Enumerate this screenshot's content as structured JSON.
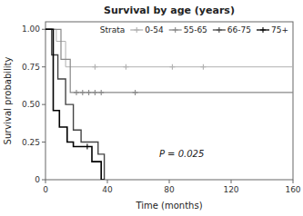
{
  "chart_data": {
    "type": "step",
    "title": "Survival by age (years)",
    "x_label": "Time (months)",
    "y_label": "Survival probability",
    "xlim": [
      0,
      160
    ],
    "ylim": [
      0,
      1.05
    ],
    "xticks": [
      0,
      40,
      80,
      120,
      160
    ],
    "yticks": [
      0,
      0.25,
      {
        "value": 0.5,
        "label": "0.50"
      },
      0.75,
      {
        "value": 1.0,
        "label": "1.00"
      }
    ],
    "grid": false,
    "legend": "upper right",
    "legend_title": "Strata",
    "annotations": [
      {
        "text": "P = 0.025",
        "x": 88,
        "y": 0.17
      }
    ],
    "series": [
      {
        "name": "0-54",
        "color": "#b0b0b0",
        "marker": "plus",
        "x": [
          0,
          7,
          7,
          13,
          13,
          160
        ],
        "values": [
          1.0,
          1.0,
          0.92,
          0.92,
          0.75,
          0.75
        ],
        "censors_x": [
          32,
          52,
          82,
          102
        ],
        "censors_y": [
          0.75,
          0.75,
          0.75,
          0.75
        ]
      },
      {
        "name": "55-65",
        "color": "#888888",
        "marker": "plus",
        "x": [
          0,
          10,
          10,
          16,
          16,
          160
        ],
        "values": [
          1.0,
          1.0,
          0.8,
          0.8,
          0.58,
          0.58
        ],
        "censors_x": [
          20,
          24,
          28,
          32,
          36,
          58
        ],
        "censors_y": [
          0.58,
          0.58,
          0.58,
          0.58,
          0.58,
          0.58
        ]
      },
      {
        "name": "66-75",
        "color": "#444444",
        "marker": "plus",
        "x": [
          0,
          4,
          4,
          8,
          8,
          13,
          13,
          18,
          18,
          23,
          23,
          34,
          34,
          38,
          38
        ],
        "values": [
          1.0,
          1.0,
          0.83,
          0.83,
          0.67,
          0.67,
          0.5,
          0.5,
          0.33,
          0.33,
          0.25,
          0.25,
          0.17,
          0.17,
          0.0
        ],
        "censors_x": [],
        "censors_y": []
      },
      {
        "name": "75+",
        "color": "#000000",
        "marker": "plus",
        "x": [
          0,
          5,
          5,
          9,
          9,
          14,
          14,
          18,
          18,
          26,
          26,
          30,
          30,
          36,
          36,
          38
        ],
        "values": [
          1.0,
          1.0,
          0.46,
          0.46,
          0.35,
          0.35,
          0.25,
          0.25,
          0.22,
          0.22,
          0.22,
          0.22,
          0.12,
          0.12,
          0.0,
          0.0
        ],
        "censors_x": [
          27
        ],
        "censors_y": [
          0.22
        ]
      }
    ]
  }
}
